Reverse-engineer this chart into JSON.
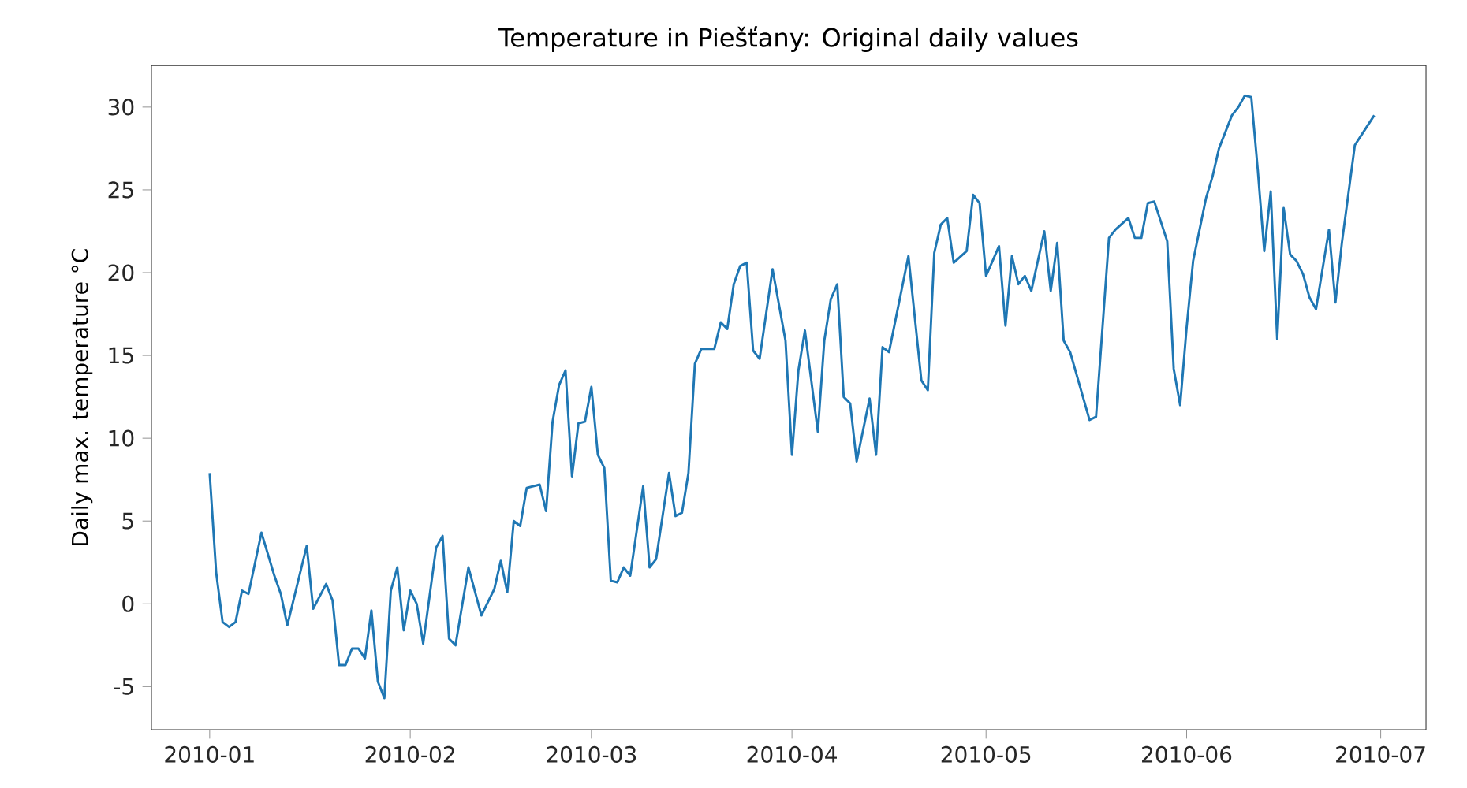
{
  "chart_data": {
    "type": "line",
    "title": "Temperature in Piešťany: Original daily values",
    "ylabel": "Daily max. temperature °C",
    "x": [
      "2010-01-01",
      "2010-01-02",
      "2010-01-03",
      "2010-01-04",
      "2010-01-05",
      "2010-01-06",
      "2010-01-07",
      "2010-01-09",
      "2010-01-11",
      "2010-01-12",
      "2010-01-13",
      "2010-01-16",
      "2010-01-17",
      "2010-01-19",
      "2010-01-20",
      "2010-01-21",
      "2010-01-22",
      "2010-01-23",
      "2010-01-24",
      "2010-01-25",
      "2010-01-26",
      "2010-01-27",
      "2010-01-28",
      "2010-01-29",
      "2010-01-30",
      "2010-01-31",
      "2010-02-01",
      "2010-02-02",
      "2010-02-03",
      "2010-02-05",
      "2010-02-06",
      "2010-02-07",
      "2010-02-08",
      "2010-02-10",
      "2010-02-12",
      "2010-02-14",
      "2010-02-15",
      "2010-02-16",
      "2010-02-17",
      "2010-02-18",
      "2010-02-19",
      "2010-02-21",
      "2010-02-22",
      "2010-02-23",
      "2010-02-24",
      "2010-02-25",
      "2010-02-26",
      "2010-02-27",
      "2010-02-28",
      "2010-03-01",
      "2010-03-02",
      "2010-03-03",
      "2010-03-04",
      "2010-03-05",
      "2010-03-06",
      "2010-03-07",
      "2010-03-09",
      "2010-03-10",
      "2010-03-11",
      "2010-03-13",
      "2010-03-14",
      "2010-03-15",
      "2010-03-16",
      "2010-03-17",
      "2010-03-18",
      "2010-03-20",
      "2010-03-21",
      "2010-03-22",
      "2010-03-23",
      "2010-03-24",
      "2010-03-25",
      "2010-03-26",
      "2010-03-27",
      "2010-03-29",
      "2010-03-31",
      "2010-04-01",
      "2010-04-02",
      "2010-04-03",
      "2010-04-05",
      "2010-04-06",
      "2010-04-07",
      "2010-04-08",
      "2010-04-09",
      "2010-04-10",
      "2010-04-11",
      "2010-04-13",
      "2010-04-14",
      "2010-04-15",
      "2010-04-16",
      "2010-04-19",
      "2010-04-21",
      "2010-04-22",
      "2010-04-23",
      "2010-04-24",
      "2010-04-25",
      "2010-04-26",
      "2010-04-28",
      "2010-04-29",
      "2010-04-30",
      "2010-05-01",
      "2010-05-03",
      "2010-05-04",
      "2010-05-05",
      "2010-05-06",
      "2010-05-07",
      "2010-05-08",
      "2010-05-10",
      "2010-05-11",
      "2010-05-12",
      "2010-05-13",
      "2010-05-14",
      "2010-05-17",
      "2010-05-18",
      "2010-05-20",
      "2010-05-21",
      "2010-05-23",
      "2010-05-24",
      "2010-05-25",
      "2010-05-26",
      "2010-05-27",
      "2010-05-29",
      "2010-05-30",
      "2010-05-31",
      "2010-06-01",
      "2010-06-02",
      "2010-06-04",
      "2010-06-05",
      "2010-06-06",
      "2010-06-08",
      "2010-06-09",
      "2010-06-10",
      "2010-06-11",
      "2010-06-12",
      "2010-06-13",
      "2010-06-14",
      "2010-06-15",
      "2010-06-16",
      "2010-06-17",
      "2010-06-18",
      "2010-06-19",
      "2010-06-20",
      "2010-06-21",
      "2010-06-23",
      "2010-06-24",
      "2010-06-25",
      "2010-06-27",
      "2010-06-28",
      "2010-06-30"
    ],
    "series": [
      {
        "color": "#1f77b4",
        "values": [
          7.9,
          1.9,
          -1.1,
          -1.4,
          -1.1,
          0.8,
          0.6,
          4.3,
          1.7,
          0.6,
          -1.3,
          3.5,
          -0.3,
          1.2,
          0.2,
          -3.7,
          -3.7,
          -2.7,
          -2.7,
          -3.3,
          -0.4,
          -4.7,
          -5.7,
          0.8,
          2.2,
          -1.6,
          0.8,
          0.0,
          -2.4,
          3.4,
          4.1,
          -2.1,
          -2.5,
          2.2,
          -0.7,
          0.9,
          2.6,
          0.7,
          5.0,
          4.7,
          7.0,
          7.2,
          5.6,
          11.0,
          13.2,
          14.1,
          7.7,
          10.9,
          11.0,
          13.1,
          9.0,
          8.2,
          1.4,
          1.3,
          2.2,
          1.7,
          7.1,
          2.2,
          2.7,
          7.9,
          5.3,
          5.5,
          7.9,
          14.5,
          15.4,
          15.4,
          17.0,
          16.6,
          19.3,
          20.4,
          20.6,
          15.3,
          14.8,
          20.2,
          15.9,
          9.0,
          14.1,
          16.5,
          10.4,
          15.9,
          18.4,
          19.3,
          12.5,
          12.1,
          8.6,
          12.4,
          9.0,
          15.5,
          15.2,
          21.0,
          13.5,
          12.9,
          21.2,
          22.9,
          23.3,
          20.6,
          21.3,
          24.7,
          24.2,
          19.8,
          21.6,
          16.8,
          21.0,
          19.3,
          19.8,
          18.9,
          22.5,
          18.9,
          21.8,
          15.9,
          15.2,
          11.1,
          11.3,
          22.1,
          22.6,
          23.3,
          22.1,
          22.1,
          24.2,
          24.3,
          21.9,
          14.2,
          12.0,
          16.7,
          20.7,
          24.5,
          25.8,
          27.5,
          29.5,
          30.0,
          30.7,
          30.6,
          26.2,
          21.3,
          24.9,
          16.0,
          23.9,
          21.1,
          20.7,
          19.9,
          18.5,
          17.8,
          22.6,
          18.2,
          21.8,
          27.7,
          28.3,
          29.5
        ]
      }
    ],
    "xlim": [
      "2009-12-23",
      "2010-07-08"
    ],
    "ylim": [
      -7.6,
      32.5
    ],
    "xticks": [
      {
        "value": "2010-01-01",
        "label": "2010-01"
      },
      {
        "value": "2010-02-01",
        "label": "2010-02"
      },
      {
        "value": "2010-03-01",
        "label": "2010-03"
      },
      {
        "value": "2010-04-01",
        "label": "2010-04"
      },
      {
        "value": "2010-05-01",
        "label": "2010-05"
      },
      {
        "value": "2010-06-01",
        "label": "2010-06"
      },
      {
        "value": "2010-07-01",
        "label": "2010-07"
      }
    ],
    "yticks": [
      -5,
      0,
      5,
      10,
      15,
      20,
      25,
      30
    ]
  }
}
